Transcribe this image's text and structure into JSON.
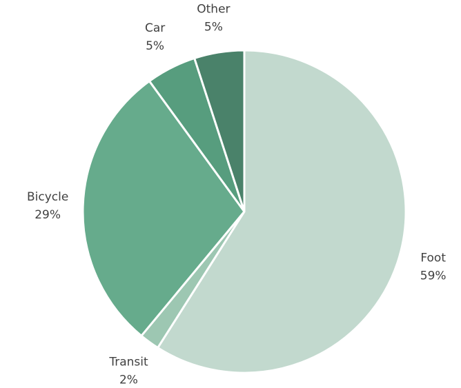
{
  "chart_data": {
    "type": "pie",
    "categories": [
      "Foot",
      "Transit",
      "Bicycle",
      "Car",
      "Other"
    ],
    "values": [
      59,
      2,
      29,
      5,
      5
    ],
    "value_labels": [
      "59%",
      "2%",
      "29%",
      "5%",
      "5%"
    ],
    "colors": [
      "#c2d9ce",
      "#9dc7b2",
      "#66ab8c",
      "#579d7e",
      "#4a826a"
    ]
  }
}
